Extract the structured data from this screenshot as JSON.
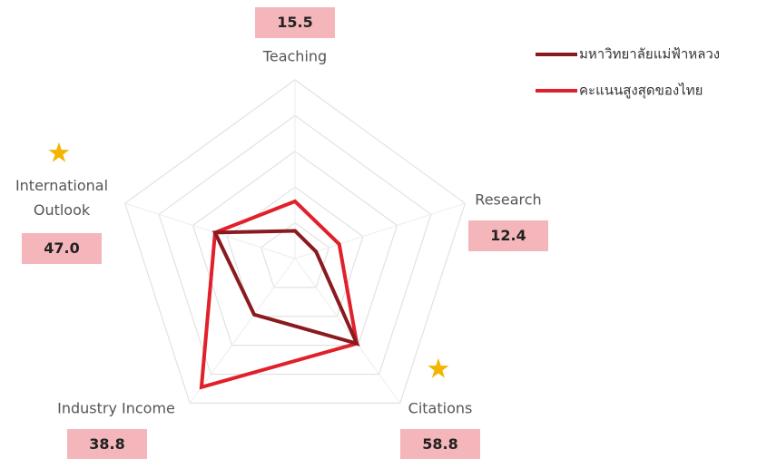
{
  "chart_data": {
    "type": "radar",
    "categories": [
      "Teaching",
      "Research",
      "Citations",
      "Industry Income",
      "International Outlook"
    ],
    "rlim": [
      0,
      100
    ],
    "rticks": [
      20,
      40,
      60,
      80,
      100
    ],
    "grid": true,
    "series": [
      {
        "name": "มหาวิทยาลัยแม่ฟ้าหลวง",
        "color": "#8b1a1f",
        "values": [
          15.5,
          12.4,
          58.8,
          38.8,
          47.0
        ],
        "value_labels": [
          "15.5",
          "12.4",
          "58.8",
          "38.8",
          "47.0"
        ]
      },
      {
        "name": "คะแนนสูงสุดของไทย",
        "color": "#e0202a",
        "values": [
          32,
          26,
          58.8,
          89,
          47
        ]
      }
    ]
  }
}
